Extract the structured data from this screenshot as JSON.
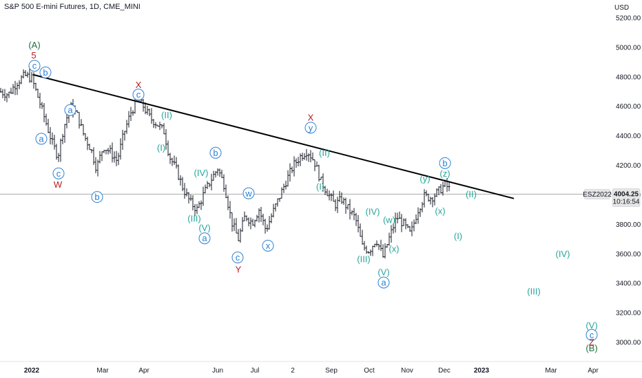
{
  "header": {
    "title": "S&P 500 E-mini Futures, 1D, CME_MINI"
  },
  "chart_data": {
    "type": "candlestick",
    "currency": "USD",
    "ylim": [
      2880,
      5320
    ],
    "y_ticks": [
      "5200.00",
      "5000.00",
      "4800.00",
      "4600.00",
      "4400.00",
      "4200.00",
      "4000.00",
      "3800.00",
      "3600.00",
      "3400.00",
      "3200.00",
      "3000.00"
    ],
    "x_ticks": [
      {
        "label": "2022",
        "bold": true,
        "px": 46
      },
      {
        "label": "Mar",
        "px": 149
      },
      {
        "label": "Apr",
        "px": 209
      },
      {
        "label": "Jun",
        "px": 316
      },
      {
        "label": "Jul",
        "px": 370
      },
      {
        "label": "2",
        "px": 425
      },
      {
        "label": "Sep",
        "px": 481
      },
      {
        "label": "Oct",
        "px": 536
      },
      {
        "label": "Nov",
        "px": 591
      },
      {
        "label": "Dec",
        "px": 645
      },
      {
        "label": "2023",
        "bold": true,
        "px": 699
      },
      {
        "label": "Mar",
        "px": 800
      },
      {
        "label": "Apr",
        "px": 861
      }
    ],
    "path_points": [
      [
        0,
        4700
      ],
      [
        12,
        4680
      ],
      [
        24,
        4760
      ],
      [
        36,
        4810
      ],
      [
        46,
        4790
      ],
      [
        56,
        4650
      ],
      [
        66,
        4500
      ],
      [
        76,
        4350
      ],
      [
        84,
        4260
      ],
      [
        92,
        4450
      ],
      [
        102,
        4600
      ],
      [
        112,
        4540
      ],
      [
        122,
        4400
      ],
      [
        132,
        4310
      ],
      [
        140,
        4180
      ],
      [
        150,
        4330
      ],
      [
        160,
        4290
      ],
      [
        170,
        4230
      ],
      [
        180,
        4420
      ],
      [
        190,
        4560
      ],
      [
        200,
        4640
      ],
      [
        208,
        4600
      ],
      [
        218,
        4520
      ],
      [
        228,
        4480
      ],
      [
        238,
        4430
      ],
      [
        246,
        4260
      ],
      [
        256,
        4170
      ],
      [
        266,
        4040
      ],
      [
        276,
        3950
      ],
      [
        286,
        3900
      ],
      [
        296,
        4010
      ],
      [
        306,
        4100
      ],
      [
        316,
        4180
      ],
      [
        326,
        4060
      ],
      [
        336,
        3820
      ],
      [
        346,
        3700
      ],
      [
        356,
        3860
      ],
      [
        366,
        3810
      ],
      [
        376,
        3900
      ],
      [
        386,
        3760
      ],
      [
        396,
        3880
      ],
      [
        406,
        3990
      ],
      [
        416,
        4100
      ],
      [
        426,
        4200
      ],
      [
        436,
        4260
      ],
      [
        446,
        4300
      ],
      [
        456,
        4230
      ],
      [
        466,
        4090
      ],
      [
        476,
        4010
      ],
      [
        486,
        3930
      ],
      [
        496,
        3970
      ],
      [
        506,
        3900
      ],
      [
        516,
        3840
      ],
      [
        526,
        3650
      ],
      [
        536,
        3620
      ],
      [
        546,
        3700
      ],
      [
        556,
        3580
      ],
      [
        566,
        3720
      ],
      [
        576,
        3850
      ],
      [
        586,
        3800
      ],
      [
        596,
        3730
      ],
      [
        606,
        3890
      ],
      [
        616,
        3990
      ],
      [
        626,
        3980
      ],
      [
        636,
        4020
      ],
      [
        646,
        4070
      ],
      [
        654,
        4030
      ]
    ],
    "trendline": {
      "from": [
        48,
        4815
      ],
      "to": [
        746,
        3975
      ]
    },
    "current_price": {
      "value": 4004.25,
      "label": "4004.25",
      "countdown": "10:16:54",
      "symbol": "ESZ2022"
    },
    "annotations": [
      {
        "text": "(A)",
        "x": 50,
        "y": 5015,
        "color": "#1f6b3a",
        "circle": false,
        "big": true
      },
      {
        "text": "5",
        "x": 49,
        "y": 4945,
        "color": "#b71c1c",
        "circle": false,
        "big": true
      },
      {
        "text": "c",
        "x": 50,
        "y": 4875,
        "color": "#2a7fd4",
        "circle": true
      },
      {
        "text": "b",
        "x": 66,
        "y": 4830,
        "color": "#2a7fd4",
        "circle": true
      },
      {
        "text": "a",
        "x": 102,
        "y": 4575,
        "color": "#2a7fd4",
        "circle": true
      },
      {
        "text": "a",
        "x": 60,
        "y": 4380,
        "color": "#2a7fd4",
        "circle": true
      },
      {
        "text": "c",
        "x": 85,
        "y": 4145,
        "color": "#2a7fd4",
        "circle": true
      },
      {
        "text": "W",
        "x": 84,
        "y": 4070,
        "color": "#b71c1c",
        "circle": false,
        "big": true
      },
      {
        "text": "b",
        "x": 141,
        "y": 3985,
        "color": "#2a7fd4",
        "circle": true
      },
      {
        "text": "X",
        "x": 201,
        "y": 4745,
        "color": "#b71c1c",
        "circle": false,
        "big": true
      },
      {
        "text": "c",
        "x": 201,
        "y": 4680,
        "color": "#2a7fd4",
        "circle": true
      },
      {
        "text": "(II)",
        "x": 242,
        "y": 4540,
        "color": "#26a69a",
        "circle": false
      },
      {
        "text": "(I)",
        "x": 234,
        "y": 4320,
        "color": "#26a69a",
        "circle": false
      },
      {
        "text": "b",
        "x": 313,
        "y": 4285,
        "color": "#2a7fd4",
        "circle": true
      },
      {
        "text": "(IV)",
        "x": 292,
        "y": 4150,
        "color": "#26a69a",
        "circle": false
      },
      {
        "text": "(III)",
        "x": 282,
        "y": 3840,
        "color": "#26a69a",
        "circle": false
      },
      {
        "text": "(V)",
        "x": 297,
        "y": 3775,
        "color": "#26a69a",
        "circle": false
      },
      {
        "text": "a",
        "x": 297,
        "y": 3705,
        "color": "#2a7fd4",
        "circle": true
      },
      {
        "text": "w",
        "x": 361,
        "y": 4010,
        "color": "#2a7fd4",
        "circle": true
      },
      {
        "text": "x",
        "x": 389,
        "y": 3655,
        "color": "#2a7fd4",
        "circle": true
      },
      {
        "text": "c",
        "x": 345,
        "y": 3575,
        "color": "#2a7fd4",
        "circle": true
      },
      {
        "text": "Y",
        "x": 346,
        "y": 3495,
        "color": "#b71c1c",
        "circle": false,
        "big": true
      },
      {
        "text": "X",
        "x": 451,
        "y": 4525,
        "color": "#b71c1c",
        "circle": false,
        "big": true
      },
      {
        "text": "y",
        "x": 451,
        "y": 4455,
        "color": "#2a7fd4",
        "circle": true
      },
      {
        "text": "(II)",
        "x": 471,
        "y": 4285,
        "color": "#26a69a",
        "circle": false
      },
      {
        "text": "(I)",
        "x": 465,
        "y": 4055,
        "color": "#26a69a",
        "circle": false
      },
      {
        "text": "(IV)",
        "x": 541,
        "y": 3885,
        "color": "#26a69a",
        "circle": false
      },
      {
        "text": "(w)",
        "x": 565,
        "y": 3830,
        "color": "#26a69a",
        "circle": false
      },
      {
        "text": "(III)",
        "x": 528,
        "y": 3565,
        "color": "#26a69a",
        "circle": false
      },
      {
        "text": "(x)",
        "x": 572,
        "y": 3635,
        "color": "#26a69a",
        "circle": false
      },
      {
        "text": "(V)",
        "x": 557,
        "y": 3475,
        "color": "#26a69a",
        "circle": false
      },
      {
        "text": "a",
        "x": 557,
        "y": 3405,
        "color": "#2a7fd4",
        "circle": true
      },
      {
        "text": "b",
        "x": 646,
        "y": 4215,
        "color": "#2a7fd4",
        "circle": true
      },
      {
        "text": "(z)",
        "x": 646,
        "y": 4145,
        "color": "#26a69a",
        "circle": false
      },
      {
        "text": "(y)",
        "x": 617,
        "y": 4110,
        "color": "#26a69a",
        "circle": false
      },
      {
        "text": "(x)",
        "x": 639,
        "y": 3890,
        "color": "#26a69a",
        "circle": false
      },
      {
        "text": "(II)",
        "x": 684,
        "y": 4005,
        "color": "#26a69a",
        "circle": false
      },
      {
        "text": "(I)",
        "x": 665,
        "y": 3720,
        "color": "#26a69a",
        "circle": false
      },
      {
        "text": "(IV)",
        "x": 817,
        "y": 3600,
        "color": "#26a69a",
        "circle": false
      },
      {
        "text": "(III)",
        "x": 775,
        "y": 3345,
        "color": "#26a69a",
        "circle": false
      },
      {
        "text": "(V)",
        "x": 859,
        "y": 3115,
        "color": "#26a69a",
        "circle": false
      },
      {
        "text": "c",
        "x": 859,
        "y": 3050,
        "color": "#2a7fd4",
        "circle": true
      },
      {
        "text": "Z",
        "x": 859,
        "y": 3000,
        "color": "#b71c1c",
        "circle": false,
        "big": true
      },
      {
        "text": "(B)",
        "x": 859,
        "y": 2960,
        "color": "#1f6b3a",
        "circle": false,
        "big": true
      }
    ],
    "colors": {
      "candle": "#131722",
      "trendline": "#000000",
      "price_line": "#9e9e9e",
      "tag_bg": "#e6e6e6"
    }
  }
}
